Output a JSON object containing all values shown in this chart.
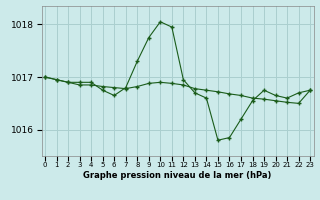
{
  "title": "Graphe pression niveau de la mer (hPa)",
  "bg_color": "#cceaea",
  "grid_color": "#aacfcf",
  "line1_color": "#1a5c1a",
  "line2_color": "#1a5c1a",
  "x": [
    0,
    1,
    2,
    3,
    4,
    5,
    6,
    7,
    8,
    9,
    10,
    11,
    12,
    13,
    14,
    15,
    16,
    17,
    18,
    19,
    20,
    21,
    22,
    23
  ],
  "line1_y": [
    1017.0,
    1016.95,
    1016.9,
    1016.9,
    1016.9,
    1016.75,
    1016.65,
    1016.8,
    1017.3,
    1017.75,
    1018.05,
    1017.95,
    1016.95,
    1016.7,
    1016.6,
    1015.8,
    1015.85,
    1016.2,
    1016.55,
    1016.75,
    1016.65,
    1016.6,
    1016.7,
    1016.75
  ],
  "line2_y": [
    1017.0,
    1016.95,
    1016.9,
    1016.85,
    1016.85,
    1016.82,
    1016.8,
    1016.78,
    1016.82,
    1016.88,
    1016.9,
    1016.88,
    1016.85,
    1016.78,
    1016.75,
    1016.72,
    1016.68,
    1016.65,
    1016.6,
    1016.58,
    1016.55,
    1016.52,
    1016.5,
    1016.75
  ],
  "ylim": [
    1015.5,
    1018.35
  ],
  "yticks": [
    1016,
    1017,
    1018
  ],
  "xlim": [
    -0.3,
    23.3
  ],
  "figw": 3.2,
  "figh": 2.0,
  "dpi": 100
}
